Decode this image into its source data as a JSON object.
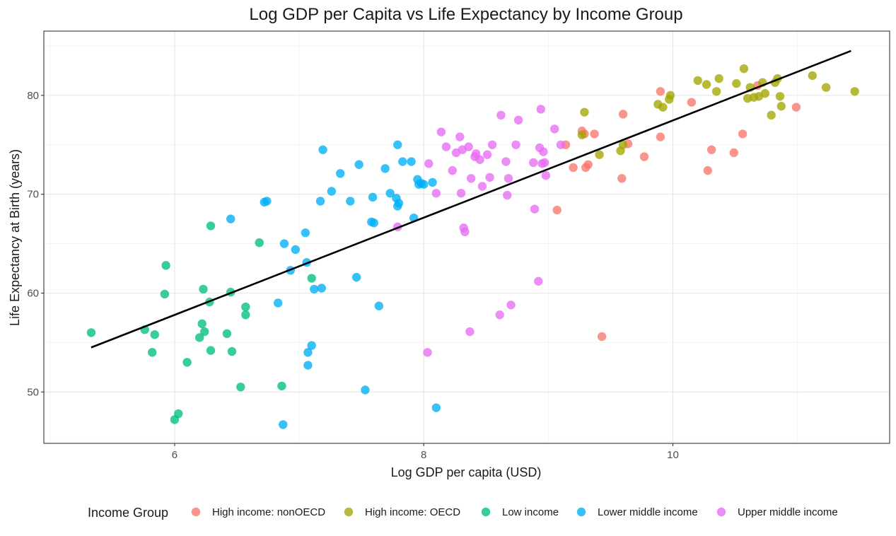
{
  "chart_data": {
    "type": "scatter",
    "title": "Log GDP per Capita vs Life Expectancy by Income Group",
    "xlabel": "Log GDP per capita (USD)",
    "ylabel": "Life Expectancy at Birth (years)",
    "xlim": [
      4.95,
      11.74
    ],
    "ylim": [
      44.8,
      86.5
    ],
    "x_ticks": [
      6,
      8,
      10
    ],
    "y_ticks": [
      50,
      60,
      70,
      80
    ],
    "grid": true,
    "legend": {
      "title": "Income Group",
      "position": "bottom"
    },
    "colors": {
      "High income: nonOECD": "#F8766D",
      "High income: OECD": "#A3A500",
      "Low income": "#00BF7D",
      "Lower middle income": "#00B0F6",
      "Upper middle income": "#E76BF3",
      "trend": "#000000"
    },
    "series": [
      {
        "name": "High income: nonOECD",
        "x": [
          9.9,
          9.29,
          9.27,
          9.37,
          9.14,
          9.2,
          9.32,
          9.3,
          9.07,
          9.6,
          9.64,
          9.77,
          9.59,
          9.43,
          9.9,
          10.15,
          10.31,
          10.28,
          10.49,
          10.56,
          10.68,
          10.99
        ],
        "y": [
          80.4,
          76.1,
          76.4,
          76.1,
          75.0,
          72.7,
          73.0,
          72.7,
          68.4,
          78.1,
          75.1,
          73.8,
          71.6,
          55.6,
          75.8,
          79.3,
          74.5,
          72.4,
          74.2,
          76.1,
          81.0,
          78.8
        ]
      },
      {
        "name": "High income: OECD",
        "x": [
          9.29,
          9.27,
          9.41,
          9.58,
          9.6,
          9.88,
          9.92,
          9.97,
          9.98,
          10.2,
          10.27,
          10.35,
          10.37,
          10.51,
          10.57,
          10.6,
          10.62,
          10.65,
          10.69,
          10.72,
          10.74,
          10.79,
          10.82,
          10.84,
          10.86,
          10.87,
          11.12,
          11.23,
          11.46
        ],
        "y": [
          78.3,
          76.0,
          74.0,
          74.4,
          75.0,
          79.1,
          78.8,
          79.6,
          80.0,
          81.5,
          81.1,
          80.4,
          81.7,
          81.2,
          82.7,
          79.7,
          80.8,
          79.8,
          79.9,
          81.3,
          80.2,
          78.0,
          81.3,
          81.7,
          79.9,
          78.9,
          82.0,
          80.8,
          80.4
        ]
      },
      {
        "name": "Low income",
        "x": [
          5.33,
          5.76,
          5.82,
          5.84,
          5.92,
          5.93,
          6.0,
          6.03,
          6.1,
          6.2,
          6.22,
          6.23,
          6.24,
          6.28,
          6.29,
          6.29,
          6.42,
          6.45,
          6.46,
          6.53,
          6.57,
          6.57,
          6.68,
          6.86,
          7.1
        ],
        "y": [
          56.0,
          56.3,
          54.0,
          55.8,
          59.9,
          62.8,
          47.2,
          47.8,
          53.0,
          55.5,
          56.9,
          60.4,
          56.1,
          59.1,
          54.2,
          66.8,
          55.9,
          60.1,
          54.1,
          50.5,
          58.6,
          57.8,
          65.1,
          50.6,
          61.5
        ]
      },
      {
        "name": "Lower middle income",
        "x": [
          6.45,
          6.72,
          6.74,
          6.83,
          6.87,
          6.88,
          6.93,
          6.97,
          7.05,
          7.06,
          7.07,
          7.07,
          7.1,
          7.12,
          7.17,
          7.18,
          7.19,
          7.26,
          7.33,
          7.41,
          7.46,
          7.48,
          7.53,
          7.58,
          7.59,
          7.6,
          7.64,
          7.69,
          7.73,
          7.78,
          7.79,
          7.79,
          7.8,
          7.83,
          7.9,
          7.92,
          7.95,
          7.96,
          7.98,
          8.0,
          8.07,
          8.1
        ],
        "y": [
          67.5,
          69.2,
          69.3,
          59.0,
          46.7,
          65.0,
          62.3,
          64.4,
          66.1,
          63.1,
          54.0,
          52.7,
          54.7,
          60.4,
          69.3,
          60.5,
          74.5,
          70.3,
          72.1,
          69.3,
          61.6,
          73.0,
          50.2,
          67.2,
          69.7,
          67.1,
          58.7,
          72.6,
          70.1,
          69.6,
          75.0,
          68.8,
          69.1,
          73.3,
          73.3,
          67.6,
          71.5,
          71.0,
          71.1,
          71.0,
          71.2,
          48.4
        ]
      },
      {
        "name": "Upper middle income",
        "x": [
          7.79,
          8.03,
          8.04,
          8.1,
          8.14,
          8.18,
          8.23,
          8.26,
          8.29,
          8.3,
          8.31,
          8.32,
          8.33,
          8.36,
          8.37,
          8.38,
          8.41,
          8.42,
          8.45,
          8.47,
          8.51,
          8.53,
          8.55,
          8.61,
          8.62,
          8.66,
          8.67,
          8.68,
          8.7,
          8.74,
          8.76,
          8.88,
          8.89,
          8.92,
          8.93,
          8.94,
          8.95,
          8.96,
          8.97,
          8.98,
          9.05,
          9.1
        ],
        "y": [
          66.7,
          54.0,
          73.1,
          70.1,
          76.3,
          74.8,
          72.4,
          74.2,
          75.8,
          70.1,
          74.5,
          66.6,
          66.2,
          74.8,
          56.1,
          71.6,
          73.8,
          74.1,
          73.5,
          70.8,
          74.0,
          71.7,
          75.0,
          57.8,
          78.0,
          73.3,
          69.9,
          71.6,
          58.8,
          75.0,
          77.5,
          73.2,
          68.5,
          61.2,
          74.7,
          78.6,
          73.1,
          74.3,
          73.2,
          71.9,
          76.6,
          75.0
        ]
      }
    ],
    "trend_line": {
      "x": [
        5.33,
        11.43
      ],
      "y": [
        54.5,
        84.5
      ]
    }
  }
}
